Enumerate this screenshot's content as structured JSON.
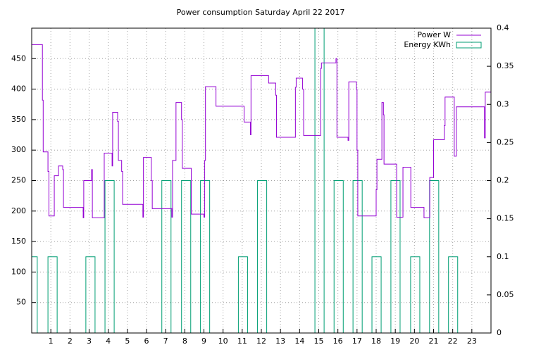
{
  "chart_data": {
    "type": "line",
    "title": "Power consumption Saturday April 22 2017",
    "xlim": [
      0,
      24
    ],
    "xticks": [
      1,
      2,
      3,
      4,
      5,
      6,
      7,
      8,
      9,
      10,
      11,
      12,
      13,
      14,
      15,
      16,
      17,
      18,
      19,
      20,
      21,
      22,
      23
    ],
    "ylim": [
      0,
      500
    ],
    "yticks": [
      50,
      100,
      150,
      200,
      250,
      300,
      350,
      400,
      450
    ],
    "y2lim": [
      0,
      0.4
    ],
    "y2ticks": [
      0,
      0.05,
      0.1,
      0.15,
      0.2,
      0.25,
      0.3,
      0.35,
      0.4
    ],
    "grid": true,
    "legend": "top-right",
    "series": [
      {
        "name": "Power W",
        "color": "#9400d3",
        "style": "steps",
        "x": [
          0,
          0.56,
          0.6,
          0.85,
          0.9,
          1.18,
          1.4,
          1.62,
          1.66,
          2.69,
          2.72,
          3.13,
          3.17,
          3.79,
          4.2,
          4.23,
          4.49,
          4.53,
          4.7,
          4.75,
          5.81,
          5.84,
          6.25,
          6.3,
          7.32,
          7.36,
          7.54,
          7.83,
          7.87,
          8.34,
          9.0,
          9.04,
          9.08,
          9.63,
          11.1,
          11.43,
          11.46,
          12.38,
          12.75,
          12.79,
          13.78,
          13.82,
          14.15,
          14.21,
          15.1,
          15.14,
          15.9,
          15.95,
          16.53,
          16.57,
          16.97,
          17.0,
          17.04,
          18.0,
          18.04,
          18.3,
          18.38,
          18.41,
          19.07,
          19.4,
          19.81,
          20.5,
          20.8,
          21.0,
          21.56,
          21.6,
          22.08,
          22.19,
          23.66,
          23.7
        ],
        "values": [
          473,
          382,
          297,
          265,
          192,
          258,
          274,
          268,
          206,
          189,
          250,
          268,
          189,
          295,
          274,
          362,
          347,
          283,
          265,
          211,
          190,
          288,
          250,
          204,
          190,
          283,
          378,
          350,
          270,
          195,
          190,
          283,
          404,
          372,
          346,
          325,
          422,
          410,
          390,
          321,
          403,
          418,
          400,
          324,
          434,
          443,
          450,
          321,
          316,
          412,
          400,
          300,
          192,
          235,
          285,
          378,
          358,
          277,
          190,
          272,
          206,
          189,
          255,
          317,
          340,
          387,
          290,
          371,
          320,
          395
        ]
      },
      {
        "name": "Energy KWh",
        "color": "#009e73",
        "style": "boxes",
        "axis": "y2",
        "x": [
          0.05,
          1.09,
          3.07,
          4.07,
          7.04,
          8.07,
          9.06,
          11.04,
          12.04,
          15.04,
          16.04,
          17.03,
          18.02,
          19.01,
          20.04,
          21.03,
          22.02
        ],
        "values": [
          0.1,
          0.1,
          0.1,
          0.2,
          0.2,
          0.2,
          0.2,
          0.1,
          0.2,
          0.4,
          0.2,
          0.2,
          0.1,
          0.2,
          0.1,
          0.2,
          0.1
        ]
      }
    ]
  }
}
